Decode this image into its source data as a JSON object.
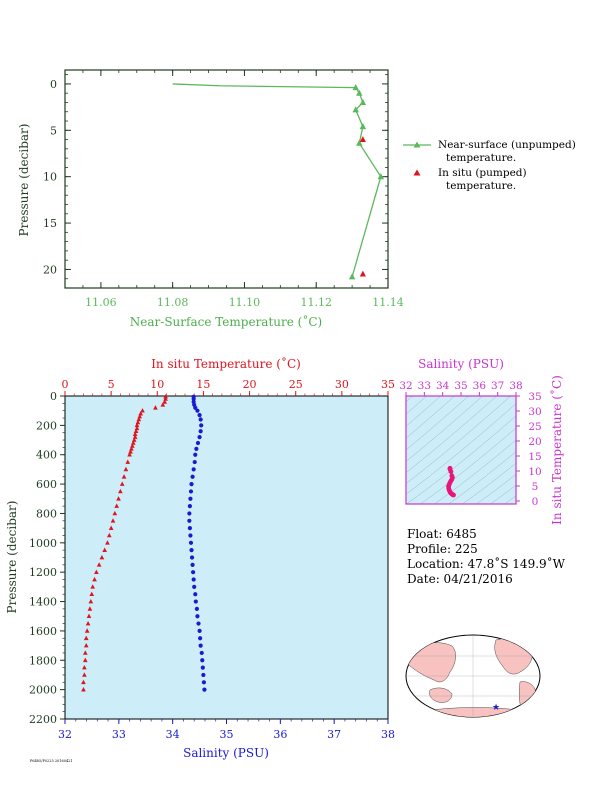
{
  "colors": {
    "near_surface": "#5cb85c",
    "temperature": "#e0141e",
    "salinity": "#1a1ad0",
    "ts_accent": "#cc33cc",
    "ts_points": "#e8157a",
    "plot_bg": "#cdeef8",
    "axis_dark": "#1e3b1e",
    "land": "#f7c2c0"
  },
  "top_chart": {
    "type": "line",
    "xlabel": "Near-Surface Temperature (˚C)",
    "ylabel": "Pressure (decibar)",
    "xlim": [
      11.05,
      11.14
    ],
    "ylim": [
      22,
      -1.5
    ],
    "xticks": [
      "11.06",
      "11.08",
      "11.10",
      "11.12",
      "11.14"
    ],
    "yticks": [
      "0",
      "5",
      "10",
      "15",
      "20"
    ],
    "legend": {
      "near_surface_line1": "Near-surface (unpumped)",
      "near_surface_line2": "temperature.",
      "insitu_line1": "In situ (pumped)",
      "insitu_line2": "temperature."
    }
  },
  "bottom_chart": {
    "type": "scatter",
    "top_axis_label": "In situ Temperature (˚C)",
    "bottom_axis_label": "Salinity (PSU)",
    "ylabel": "Pressure (decibar)",
    "temp_ticks": [
      "0",
      "5",
      "10",
      "15",
      "20",
      "25",
      "30",
      "35"
    ],
    "sal_ticks": [
      "32",
      "33",
      "34",
      "35",
      "36",
      "37",
      "38"
    ],
    "pres_ticks": [
      "0",
      "200",
      "400",
      "600",
      "800",
      "1000",
      "1200",
      "1400",
      "1600",
      "1800",
      "2000",
      "2200"
    ]
  },
  "ts_chart": {
    "type": "scatter",
    "top_label": "Salinity (PSU)",
    "right_label": "In situ Temperature (˚C)",
    "sal_ticks": [
      "32",
      "33",
      "34",
      "35",
      "36",
      "37",
      "38"
    ],
    "temp_ticks": [
      "0",
      "5",
      "10",
      "15",
      "20",
      "25",
      "30",
      "35"
    ]
  },
  "info": {
    "float": "Float:  6485",
    "profile": "Profile:  225",
    "location": "Location:  47.8˚S  149.9˚W",
    "date": "Date:  04/21/2016"
  },
  "footer_code": "P6485/P0225 20160421",
  "chart_data": [
    {
      "type": "line",
      "name_key": "near_surface",
      "x_unit": "degC",
      "y_unit": "decibar",
      "points": [
        [
          11.08,
          0.0
        ],
        [
          11.093,
          0.2
        ],
        [
          11.131,
          0.4
        ],
        [
          11.132,
          1.0
        ],
        [
          11.133,
          2.0
        ],
        [
          11.131,
          2.8
        ],
        [
          11.133,
          4.6
        ],
        [
          11.132,
          6.4
        ],
        [
          11.138,
          10.0
        ],
        [
          11.13,
          20.8
        ]
      ]
    },
    {
      "type": "scatter",
      "name_key": "insitu_surface",
      "x_unit": "degC",
      "y_unit": "decibar",
      "points": [
        [
          11.133,
          6.0
        ],
        [
          11.133,
          20.5
        ]
      ]
    },
    {
      "type": "scatter",
      "series": "temperature_profile",
      "x_unit": "degC",
      "y_unit": "decibar",
      "points": [
        [
          10.9,
          5
        ],
        [
          10.9,
          20
        ],
        [
          10.8,
          40
        ],
        [
          10.6,
          60
        ],
        [
          9.8,
          80
        ],
        [
          8.4,
          100
        ],
        [
          8.2,
          120
        ],
        [
          8.1,
          140
        ],
        [
          8.0,
          160
        ],
        [
          7.9,
          180
        ],
        [
          7.8,
          200
        ],
        [
          7.8,
          220
        ],
        [
          7.7,
          240
        ],
        [
          7.6,
          260
        ],
        [
          7.6,
          280
        ],
        [
          7.5,
          300
        ],
        [
          7.4,
          320
        ],
        [
          7.3,
          340
        ],
        [
          7.2,
          360
        ],
        [
          7.1,
          380
        ],
        [
          7.0,
          400
        ],
        [
          6.8,
          450
        ],
        [
          6.6,
          500
        ],
        [
          6.4,
          550
        ],
        [
          6.2,
          600
        ],
        [
          6.0,
          650
        ],
        [
          5.8,
          700
        ],
        [
          5.6,
          750
        ],
        [
          5.4,
          800
        ],
        [
          5.2,
          850
        ],
        [
          5.0,
          900
        ],
        [
          4.8,
          950
        ],
        [
          4.6,
          1000
        ],
        [
          4.3,
          1050
        ],
        [
          4.0,
          1100
        ],
        [
          3.7,
          1150
        ],
        [
          3.4,
          1200
        ],
        [
          3.2,
          1250
        ],
        [
          3.0,
          1300
        ],
        [
          2.9,
          1350
        ],
        [
          2.8,
          1400
        ],
        [
          2.7,
          1450
        ],
        [
          2.6,
          1500
        ],
        [
          2.5,
          1550
        ],
        [
          2.4,
          1600
        ],
        [
          2.3,
          1650
        ],
        [
          2.3,
          1700
        ],
        [
          2.2,
          1750
        ],
        [
          2.2,
          1800
        ],
        [
          2.1,
          1850
        ],
        [
          2.1,
          1900
        ],
        [
          2.0,
          1950
        ],
        [
          2.0,
          2000
        ]
      ]
    },
    {
      "type": "scatter",
      "series": "salinity_profile",
      "x_unit": "PSU",
      "y_unit": "decibar",
      "points": [
        [
          34.39,
          5
        ],
        [
          34.39,
          20
        ],
        [
          34.39,
          40
        ],
        [
          34.4,
          60
        ],
        [
          34.42,
          80
        ],
        [
          34.46,
          100
        ],
        [
          34.5,
          130
        ],
        [
          34.52,
          160
        ],
        [
          34.53,
          200
        ],
        [
          34.52,
          240
        ],
        [
          34.5,
          280
        ],
        [
          34.47,
          320
        ],
        [
          34.44,
          360
        ],
        [
          34.42,
          400
        ],
        [
          34.41,
          450
        ],
        [
          34.39,
          500
        ],
        [
          34.37,
          550
        ],
        [
          34.35,
          600
        ],
        [
          34.34,
          650
        ],
        [
          34.33,
          700
        ],
        [
          34.32,
          750
        ],
        [
          34.31,
          800
        ],
        [
          34.31,
          850
        ],
        [
          34.32,
          900
        ],
        [
          34.33,
          950
        ],
        [
          34.34,
          1000
        ],
        [
          34.35,
          1050
        ],
        [
          34.36,
          1100
        ],
        [
          34.37,
          1150
        ],
        [
          34.38,
          1200
        ],
        [
          34.39,
          1250
        ],
        [
          34.4,
          1300
        ],
        [
          34.42,
          1350
        ],
        [
          34.43,
          1400
        ],
        [
          34.45,
          1450
        ],
        [
          34.46,
          1500
        ],
        [
          34.48,
          1550
        ],
        [
          34.5,
          1600
        ],
        [
          34.51,
          1650
        ],
        [
          34.52,
          1700
        ],
        [
          34.54,
          1750
        ],
        [
          34.55,
          1800
        ],
        [
          34.56,
          1850
        ],
        [
          34.57,
          1900
        ],
        [
          34.58,
          1950
        ],
        [
          34.59,
          2000
        ]
      ]
    },
    {
      "type": "scatter",
      "series": "ts_diagram",
      "x_unit": "PSU",
      "y_unit": "degC",
      "points": [
        [
          34.4,
          10.9
        ],
        [
          34.4,
          10.6
        ],
        [
          34.45,
          9.8
        ],
        [
          34.5,
          8.4
        ],
        [
          34.53,
          7.8
        ],
        [
          34.5,
          7.2
        ],
        [
          34.44,
          6.6
        ],
        [
          34.39,
          6.0
        ],
        [
          34.35,
          5.4
        ],
        [
          34.32,
          4.8
        ],
        [
          34.33,
          4.2
        ],
        [
          34.36,
          3.6
        ],
        [
          34.4,
          3.0
        ],
        [
          34.45,
          2.6
        ],
        [
          34.5,
          2.3
        ],
        [
          34.55,
          2.1
        ],
        [
          34.59,
          2.0
        ]
      ]
    }
  ]
}
